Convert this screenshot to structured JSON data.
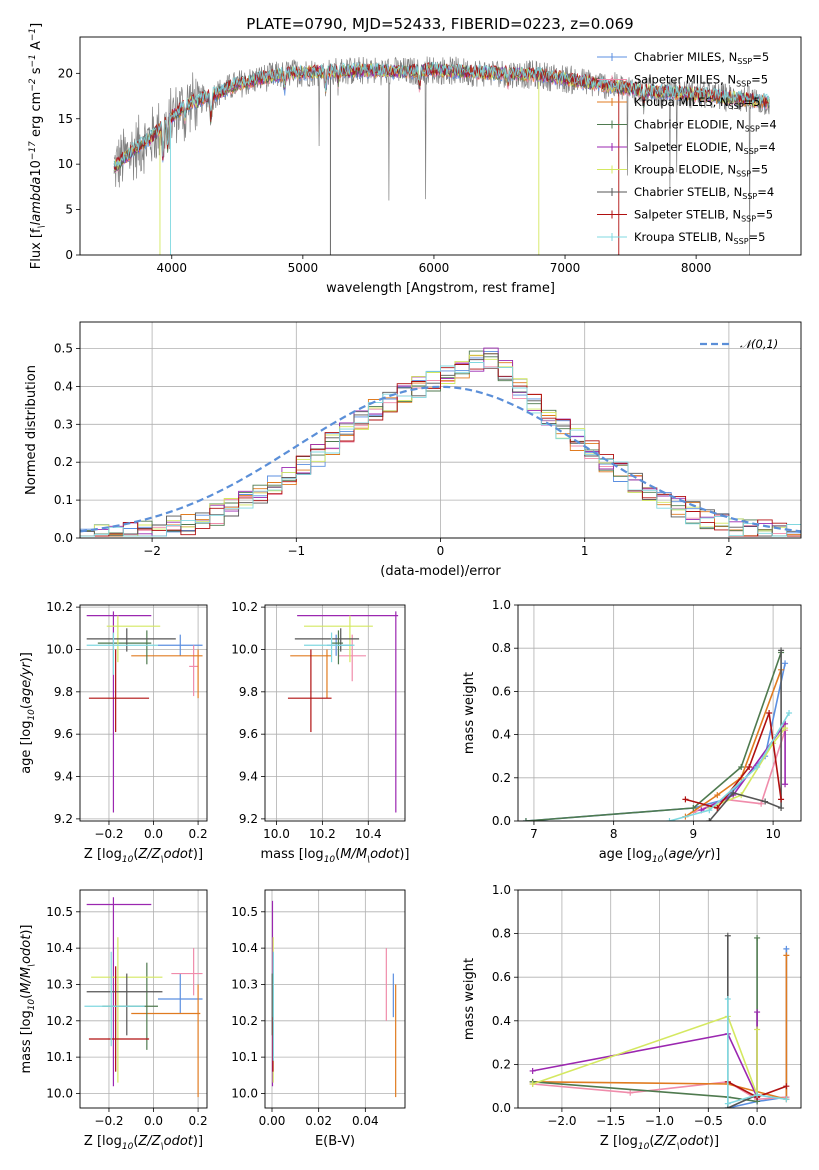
{
  "figure": {
    "title": "PLATE=0790, MJD=52433, FIBERID=0223, z=0.069"
  },
  "colors": {
    "Chabrier MILES": "#5b8fe0",
    "Salpeter MILES": "#f08cab",
    "Kroupa MILES": "#e07b20",
    "Chabrier ELODIE": "#4f7a4f",
    "Salpeter ELODIE": "#9b27b0",
    "Kroupa ELODIE": "#d4e860",
    "Chabrier STELIB": "#555555",
    "Salpeter STELIB": "#b01010",
    "Kroupa STELIB": "#80d8e0",
    "gauss": "#5b8fd8",
    "grid": "#b0b0b0"
  },
  "chart_data": [
    {
      "id": "spectrum",
      "type": "line",
      "xlabel": "wavelength [Angstrom, rest frame]",
      "ylabel": "Flux [f$_\\lambda$10$^{-17}$ erg cm$^{-2}$ s$^{-1}$ A$^{-1}$]",
      "xlim": [
        3300,
        8800
      ],
      "ylim": [
        0,
        24
      ],
      "xticks": [
        4000,
        5000,
        6000,
        7000,
        8000
      ],
      "yticks": [
        0,
        5,
        10,
        15,
        20
      ],
      "grid": false,
      "legend_position": "top-right",
      "legend": [
        {
          "model": "Chabrier MILES",
          "label": "Chabrier MILES, N",
          "sub": "SSP",
          "tail": "=5"
        },
        {
          "model": "Salpeter MILES",
          "label": "Salpeter MILES, N",
          "sub": "SSP",
          "tail": "=5"
        },
        {
          "model": "Kroupa MILES",
          "label": "Kroupa MILES, N",
          "sub": "SSP",
          "tail": "=5"
        },
        {
          "model": "Chabrier ELODIE",
          "label": "Chabrier ELODIE, N",
          "sub": "SSP",
          "tail": "=4"
        },
        {
          "model": "Salpeter ELODIE",
          "label": "Salpeter ELODIE, N",
          "sub": "SSP",
          "tail": "=4"
        },
        {
          "model": "Kroupa ELODIE",
          "label": "Kroupa ELODIE, N",
          "sub": "SSP",
          "tail": "=5"
        },
        {
          "model": "Chabrier STELIB",
          "label": "Chabrier STELIB, N",
          "sub": "SSP",
          "tail": "=4"
        },
        {
          "model": "Salpeter STELIB",
          "label": "Salpeter STELIB, N",
          "sub": "SSP",
          "tail": "=5"
        },
        {
          "model": "Kroupa STELIB",
          "label": "Kroupa STELIB, N",
          "sub": "SSP",
          "tail": "=5"
        }
      ],
      "continuum": {
        "x": [
          3550,
          3700,
          3850,
          3950,
          4100,
          4300,
          4500,
          4700,
          4900,
          5200,
          5500,
          5800,
          6000,
          6300,
          6563,
          6800,
          7000,
          7300,
          7600,
          7900,
          8200,
          8400,
          8560
        ],
        "y": [
          9.5,
          11.5,
          13.0,
          14.5,
          16.5,
          17.5,
          18.8,
          19.5,
          20.0,
          20.2,
          20.3,
          20.2,
          20.4,
          20.1,
          20.0,
          19.8,
          19.4,
          18.7,
          18.1,
          17.8,
          17.4,
          17.1,
          16.8
        ]
      },
      "dips": [
        {
          "x": 3934,
          "depth": 3.5
        },
        {
          "x": 3969,
          "depth": 3.0
        },
        {
          "x": 4102,
          "depth": 1.5
        },
        {
          "x": 4300,
          "depth": 2.5
        },
        {
          "x": 4861,
          "depth": 1.5
        },
        {
          "x": 5175,
          "depth": 2.0
        },
        {
          "x": 5270,
          "depth": 1.2
        },
        {
          "x": 5890,
          "depth": 2.0
        },
        {
          "x": 6563,
          "depth": 1.0
        },
        {
          "x": 7600,
          "depth": 1.5
        }
      ]
    },
    {
      "id": "residuals",
      "type": "histogram",
      "xlabel": "(data-model)/error",
      "ylabel": "Normed distribution",
      "xlim": [
        -2.5,
        2.5
      ],
      "ylim": [
        0,
        0.57
      ],
      "xticks": [
        -2,
        -1,
        0,
        1,
        2
      ],
      "yticks": [
        0.0,
        0.1,
        0.2,
        0.3,
        0.4,
        0.5
      ],
      "grid": true,
      "legend_position": "top-right",
      "legend": [
        {
          "label": "$\\mathcal{N}(0,1)$"
        }
      ],
      "bin_start": -2.5,
      "bin_width": 0.1
    },
    {
      "id": "age-vs-Z",
      "type": "errorbar",
      "xlabel": "Z [log$_{10}$($Z/Z_\\odot$)]",
      "ylabel": "age  [log$_{10}$($age/yr$)]",
      "xlim": [
        -0.33,
        0.24
      ],
      "ylim": [
        9.19,
        10.21
      ],
      "xticks": [
        -0.2,
        0.0,
        0.2
      ],
      "xticklabels": [
        "−0.2",
        "0.0",
        "0.2"
      ],
      "yticks": [
        9.2,
        9.4,
        9.6,
        9.8,
        10.0,
        10.2
      ],
      "grid": true,
      "points": [
        {
          "model": "Chabrier MILES",
          "x": 0.12,
          "xl": 0.1,
          "xh": 0.1,
          "y": 10.02,
          "yl": 0.05,
          "yh": 0.05
        },
        {
          "model": "Salpeter MILES",
          "x": 0.18,
          "xl": 0.02,
          "xh": 0.02,
          "y": 9.92,
          "yl": 0.14,
          "yh": 0.1
        },
        {
          "model": "Kroupa MILES",
          "x": 0.2,
          "xl": 0.3,
          "xh": 0.02,
          "y": 9.97,
          "yl": 0.2,
          "yh": 0.03
        },
        {
          "model": "Chabrier ELODIE",
          "x": -0.03,
          "xl": 0.22,
          "xh": 0.02,
          "y": 10.03,
          "yl": 0.1,
          "yh": 0.06
        },
        {
          "model": "Salpeter ELODIE",
          "x": -0.18,
          "xl": 0.12,
          "xh": 0.17,
          "y": 10.16,
          "yl": 0.93,
          "yh": 0.02
        },
        {
          "model": "Kroupa ELODIE",
          "x": -0.16,
          "xl": 0.05,
          "xh": 0.19,
          "y": 10.11,
          "yl": 0.17,
          "yh": 0.05
        },
        {
          "model": "Chabrier STELIB",
          "x": -0.12,
          "xl": 0.18,
          "xh": 0.22,
          "y": 10.05,
          "yl": 0.06,
          "yh": 0.05
        },
        {
          "model": "Salpeter STELIB",
          "x": -0.17,
          "xl": 0.12,
          "xh": 0.15,
          "y": 9.77,
          "yl": 0.16,
          "yh": 0.23
        },
        {
          "model": "Kroupa STELIB",
          "x": -0.18,
          "xl": 0.12,
          "xh": 0.2,
          "y": 10.02,
          "yl": 0.14,
          "yh": 0.06
        }
      ]
    },
    {
      "id": "age-vs-mass",
      "type": "errorbar",
      "xlabel": "mass [log$_{10}$($M/M_\\odot$)]",
      "ylabel": "",
      "xlim": [
        9.95,
        10.56
      ],
      "ylim": [
        9.19,
        10.21
      ],
      "xticks": [
        10.0,
        10.2,
        10.4
      ],
      "xticklabels": [
        "10.0",
        "10.2",
        "10.4"
      ],
      "yticks": [
        9.2,
        9.4,
        9.6,
        9.8,
        10.0,
        10.2
      ],
      "grid": true,
      "points": [
        {
          "model": "Chabrier MILES",
          "x": 10.26,
          "xl": 0.04,
          "xh": 0.07,
          "y": 10.02,
          "yl": 0.05,
          "yh": 0.05
        },
        {
          "model": "Salpeter MILES",
          "x": 10.33,
          "xl": 0.06,
          "xh": 0.06,
          "y": 9.97,
          "yl": 0.12,
          "yh": 0.1
        },
        {
          "model": "Kroupa MILES",
          "x": 10.22,
          "xl": 0.16,
          "xh": 0.02,
          "y": 9.97,
          "yl": 0.2,
          "yh": 0.03
        },
        {
          "model": "Chabrier ELODIE",
          "x": 10.27,
          "xl": 0.03,
          "xh": 0.02,
          "y": 10.03,
          "yl": 0.1,
          "yh": 0.06
        },
        {
          "model": "Salpeter ELODIE",
          "x": 10.52,
          "xl": 0.43,
          "xh": 0.01,
          "y": 10.16,
          "yl": 0.93,
          "yh": 0.02
        },
        {
          "model": "Kroupa ELODIE",
          "x": 10.32,
          "xl": 0.2,
          "xh": 0.1,
          "y": 10.11,
          "yl": 0.17,
          "yh": 0.05
        },
        {
          "model": "Chabrier STELIB",
          "x": 10.28,
          "xl": 0.2,
          "xh": 0.08,
          "y": 10.05,
          "yl": 0.06,
          "yh": 0.05
        },
        {
          "model": "Salpeter STELIB",
          "x": 10.15,
          "xl": 0.1,
          "xh": 0.09,
          "y": 9.77,
          "yl": 0.16,
          "yh": 0.23
        },
        {
          "model": "Kroupa STELIB",
          "x": 10.24,
          "xl": 0.12,
          "xh": 0.1,
          "y": 10.02,
          "yl": 0.08,
          "yh": 0.06
        }
      ]
    },
    {
      "id": "weight-vs-age",
      "type": "line",
      "xlabel": "age  [log$_{10}$($age/yr$)]",
      "ylabel": "mass weight",
      "xlim": [
        6.8,
        10.35
      ],
      "ylim": [
        0,
        1
      ],
      "xticks": [
        7,
        8,
        9,
        10
      ],
      "yticks": [
        0.0,
        0.2,
        0.4,
        0.6,
        0.8,
        1.0
      ],
      "grid": true,
      "series": [
        {
          "model": "Chabrier MILES",
          "x": [
            6.9,
            9.0,
            9.4,
            9.9,
            10.15
          ],
          "y": [
            0.0,
            0.06,
            0.1,
            0.3,
            0.73
          ]
        },
        {
          "model": "Salpeter MILES",
          "x": [
            9.0,
            9.4,
            9.85,
            10.15
          ],
          "y": [
            0.04,
            0.1,
            0.08,
            0.42
          ]
        },
        {
          "model": "Kroupa MILES",
          "x": [
            8.9,
            9.3,
            9.6,
            10.1
          ],
          "y": [
            0.02,
            0.12,
            0.2,
            0.7
          ]
        },
        {
          "model": "Chabrier ELODIE",
          "x": [
            6.9,
            9.0,
            9.6,
            10.1
          ],
          "y": [
            0.0,
            0.06,
            0.25,
            0.78
          ]
        },
        {
          "model": "Salpeter ELODIE",
          "x": [
            9.1,
            9.5,
            10.15,
            10.15
          ],
          "y": [
            0.05,
            0.12,
            0.45,
            0.17
          ]
        },
        {
          "model": "Kroupa ELODIE",
          "x": [
            9.2,
            9.6,
            10.0,
            10.15
          ],
          "y": [
            0.06,
            0.12,
            0.36,
            0.43
          ]
        },
        {
          "model": "Chabrier STELIB",
          "x": [
            9.2,
            9.5,
            9.9,
            10.1,
            10.1
          ],
          "y": [
            0.0,
            0.13,
            0.09,
            0.06,
            0.79
          ]
        },
        {
          "model": "Salpeter STELIB",
          "x": [
            8.9,
            9.3,
            9.7,
            9.95,
            10.1
          ],
          "y": [
            0.1,
            0.06,
            0.25,
            0.5,
            0.1
          ]
        },
        {
          "model": "Kroupa STELIB",
          "x": [
            8.7,
            9.2,
            9.8,
            10.2
          ],
          "y": [
            0.0,
            0.05,
            0.25,
            0.5
          ]
        }
      ]
    },
    {
      "id": "mass-vs-Z",
      "type": "errorbar",
      "xlabel": "Z [log$_{10}$($Z/Z_\\odot$)]",
      "ylabel": "mass [log$_{10}$($M/M_\\odot$)]",
      "xlim": [
        -0.33,
        0.24
      ],
      "ylim": [
        9.96,
        10.56
      ],
      "xticks": [
        -0.2,
        0.0,
        0.2
      ],
      "xticklabels": [
        "−0.2",
        "0.0",
        "0.2"
      ],
      "yticks": [
        10.0,
        10.1,
        10.2,
        10.3,
        10.4,
        10.5
      ],
      "grid": true,
      "points": [
        {
          "model": "Chabrier MILES",
          "x": 0.12,
          "xl": 0.1,
          "xh": 0.1,
          "y": 10.26,
          "yl": 0.04,
          "yh": 0.07
        },
        {
          "model": "Salpeter MILES",
          "x": 0.18,
          "xl": 0.1,
          "xh": 0.04,
          "y": 10.33,
          "yl": 0.06,
          "yh": 0.07
        },
        {
          "model": "Kroupa MILES",
          "x": 0.2,
          "xl": 0.3,
          "xh": 0.01,
          "y": 10.22,
          "yl": 0.23,
          "yh": 0.08
        },
        {
          "model": "Chabrier ELODIE",
          "x": -0.03,
          "xl": 0.2,
          "xh": 0.05,
          "y": 10.24,
          "yl": 0.12,
          "yh": 0.12
        },
        {
          "model": "Salpeter ELODIE",
          "x": -0.18,
          "xl": 0.12,
          "xh": 0.17,
          "y": 10.52,
          "yl": 0.5,
          "yh": 0.02
        },
        {
          "model": "Kroupa ELODIE",
          "x": -0.16,
          "xl": 0.12,
          "xh": 0.2,
          "y": 10.32,
          "yl": 0.29,
          "yh": 0.11
        },
        {
          "model": "Chabrier STELIB",
          "x": -0.12,
          "xl": 0.18,
          "xh": 0.16,
          "y": 10.28,
          "yl": 0.12,
          "yh": 0.05
        },
        {
          "model": "Salpeter STELIB",
          "x": -0.17,
          "xl": 0.12,
          "xh": 0.15,
          "y": 10.15,
          "yl": 0.09,
          "yh": 0.2
        },
        {
          "model": "Kroupa STELIB",
          "x": -0.19,
          "xl": 0.12,
          "xh": 0.15,
          "y": 10.24,
          "yl": 0.11,
          "yh": 0.15
        }
      ]
    },
    {
      "id": "mass-vs-ebv",
      "type": "errorbar",
      "xlabel": "E(B-V)",
      "ylabel": "",
      "xlim": [
        -0.003,
        0.057
      ],
      "ylim": [
        9.96,
        10.56
      ],
      "xticks": [
        0.0,
        0.02,
        0.04
      ],
      "xticklabels": [
        "0.00",
        "0.02",
        "0.04"
      ],
      "yticks": [
        10.0,
        10.1,
        10.2,
        10.3,
        10.4,
        10.5
      ],
      "grid": true,
      "points": [
        {
          "model": "Chabrier MILES",
          "x": 0.052,
          "xl": 0,
          "xh": 0,
          "y": 10.26,
          "yl": 0.05,
          "yh": 0.07
        },
        {
          "model": "Salpeter MILES",
          "x": 0.049,
          "xl": 0,
          "xh": 0,
          "y": 10.3,
          "yl": 0.1,
          "yh": 0.1
        },
        {
          "model": "Kroupa MILES",
          "x": 0.053,
          "xl": 0,
          "xh": 0,
          "y": 10.2,
          "yl": 0.21,
          "yh": 0.1
        },
        {
          "model": "Chabrier ELODIE",
          "x": 0.0003,
          "xl": 0,
          "xh": 0,
          "y": 10.24,
          "yl": 0.12,
          "yh": 0.12
        },
        {
          "model": "Salpeter ELODIE",
          "x": 0.0002,
          "xl": 0,
          "xh": 0,
          "y": 10.52,
          "yl": 0.5,
          "yh": 0.01
        },
        {
          "model": "Kroupa ELODIE",
          "x": 0.0005,
          "xl": 0,
          "xh": 0,
          "y": 10.32,
          "yl": 0.29,
          "yh": 0.11
        },
        {
          "model": "Chabrier STELIB",
          "x": 0.0001,
          "xl": 0,
          "xh": 0,
          "y": 10.28,
          "yl": 0.12,
          "yh": 0.05
        },
        {
          "model": "Salpeter STELIB",
          "x": 0.0004,
          "xl": 0,
          "xh": 0,
          "y": 10.15,
          "yl": 0.09,
          "yh": 0.06
        },
        {
          "model": "Kroupa STELIB",
          "x": 0.0006,
          "xl": 0,
          "xh": 0,
          "y": 10.24,
          "yl": 0.15,
          "yh": 0.15
        }
      ]
    },
    {
      "id": "weight-vs-Z",
      "type": "line",
      "xlabel": "Z [log$_{10}$($Z/Z_\\odot$)]",
      "ylabel": "mass weight",
      "xlim": [
        -2.45,
        0.45
      ],
      "ylim": [
        0,
        1
      ],
      "xticks": [
        -2.0,
        -1.5,
        -1.0,
        -0.5,
        0.0
      ],
      "xticklabels": [
        "−2.0",
        "−1.5",
        "−1.0",
        "−0.5",
        "0.0"
      ],
      "yticks": [
        0.0,
        0.2,
        0.4,
        0.6,
        0.8,
        1.0
      ],
      "grid": true,
      "series": [
        {
          "model": "Chabrier MILES",
          "x": [
            0.3,
            0.3,
            0.0,
            -0.3
          ],
          "y": [
            0.73,
            0.05,
            0.03,
            0.0
          ]
        },
        {
          "model": "Salpeter MILES",
          "x": [
            -2.3,
            -1.3,
            -0.3,
            0.0,
            0.3
          ],
          "y": [
            0.11,
            0.07,
            0.12,
            0.04,
            0.05
          ]
        },
        {
          "model": "Kroupa MILES",
          "x": [
            0.3,
            0.3,
            -0.3,
            -2.3
          ],
          "y": [
            0.7,
            0.04,
            0.11,
            0.12
          ]
        },
        {
          "model": "Chabrier ELODIE",
          "x": [
            0.0,
            0.0,
            -0.3,
            -2.3
          ],
          "y": [
            0.78,
            0.03,
            0.05,
            0.12
          ]
        },
        {
          "model": "Salpeter ELODIE",
          "x": [
            -2.3,
            -0.3,
            0.0,
            0.0
          ],
          "y": [
            0.17,
            0.34,
            0.05,
            0.44
          ]
        },
        {
          "model": "Kroupa ELODIE",
          "x": [
            -2.3,
            -0.3,
            0.0,
            0.0
          ],
          "y": [
            0.11,
            0.42,
            0.06,
            0.36
          ]
        },
        {
          "model": "Chabrier STELIB",
          "x": [
            -0.3,
            -0.3,
            0.0
          ],
          "y": [
            0.79,
            0.0,
            0.06
          ]
        },
        {
          "model": "Salpeter STELIB",
          "x": [
            -0.3,
            0.0,
            0.3
          ],
          "y": [
            0.12,
            0.05,
            0.1
          ]
        },
        {
          "model": "Kroupa STELIB",
          "x": [
            -0.3,
            -0.3,
            0.0,
            0.3
          ],
          "y": [
            0.5,
            0.02,
            0.06,
            0.04
          ]
        }
      ]
    }
  ]
}
